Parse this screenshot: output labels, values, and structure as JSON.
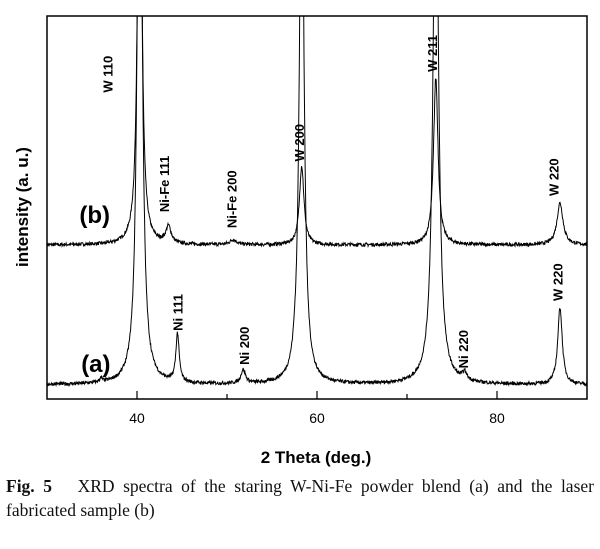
{
  "chart_data": {
    "type": "line",
    "title": "",
    "xlabel": "2 Theta (deg.)",
    "ylabel": "intensity (a. u.)",
    "xlim": [
      30,
      90
    ],
    "ylim": [
      0,
      100
    ],
    "xticks_major": [
      40,
      60,
      80
    ],
    "xticks_minor": [
      50,
      70
    ],
    "grid": false,
    "series": [
      {
        "name": "(b)",
        "label_pos": {
          "x": 33.6,
          "y": 46
        },
        "baseline": 40.2,
        "peaks": [
          {
            "x": 40.3,
            "height": 140,
            "width": 0.25
          },
          {
            "x": 43.5,
            "height": 4.4,
            "width": 0.35
          },
          {
            "x": 50.7,
            "height": 1.3,
            "width": 0.45
          },
          {
            "x": 58.3,
            "height": 20.6,
            "width": 0.3
          },
          {
            "x": 73.2,
            "height": 43.6,
            "width": 0.3
          },
          {
            "x": 87.0,
            "height": 11.0,
            "width": 0.4
          }
        ]
      },
      {
        "name": "(a)",
        "label_pos": {
          "x": 33.8,
          "y": 7
        },
        "baseline": 3.7,
        "peaks": [
          {
            "x": 36.0,
            "height": 1.0,
            "width": 0.2
          },
          {
            "x": 40.3,
            "height": 180,
            "width": 0.3
          },
          {
            "x": 44.5,
            "height": 12.7,
            "width": 0.22
          },
          {
            "x": 51.8,
            "height": 3.6,
            "width": 0.3
          },
          {
            "x": 57.5,
            "height": 1.2,
            "width": 0.2
          },
          {
            "x": 58.3,
            "height": 150,
            "width": 0.3
          },
          {
            "x": 73.2,
            "height": 150,
            "width": 0.35
          },
          {
            "x": 76.4,
            "height": 2.0,
            "width": 0.3
          },
          {
            "x": 87.0,
            "height": 20.1,
            "width": 0.3
          }
        ]
      }
    ],
    "annotations": [
      {
        "text": "W 110",
        "x": 36.7,
        "y": 80
      },
      {
        "text": "Ni-Fe 111",
        "x": 43.0,
        "y": 48.8
      },
      {
        "text": "Ni-Fe 200",
        "x": 50.5,
        "y": 44.6
      },
      {
        "text": "W 200",
        "x": 58.0,
        "y": 62
      },
      {
        "text": "W 211",
        "x": 72.8,
        "y": 85.4
      },
      {
        "text": "W 220",
        "x": 86.3,
        "y": 53
      },
      {
        "text": "Ni 111",
        "x": 44.5,
        "y": 17.8
      },
      {
        "text": "Ni 200",
        "x": 51.9,
        "y": 8.9
      },
      {
        "text": "Ni 220",
        "x": 76.2,
        "y": 8.0
      },
      {
        "text": "W 220",
        "x": 86.7,
        "y": 25.6
      }
    ]
  },
  "caption": {
    "label": "Fig. 5",
    "text": "XRD spectra of the staring W-Ni-Fe powder blend (a) and the laser fabricated sample (b)"
  }
}
